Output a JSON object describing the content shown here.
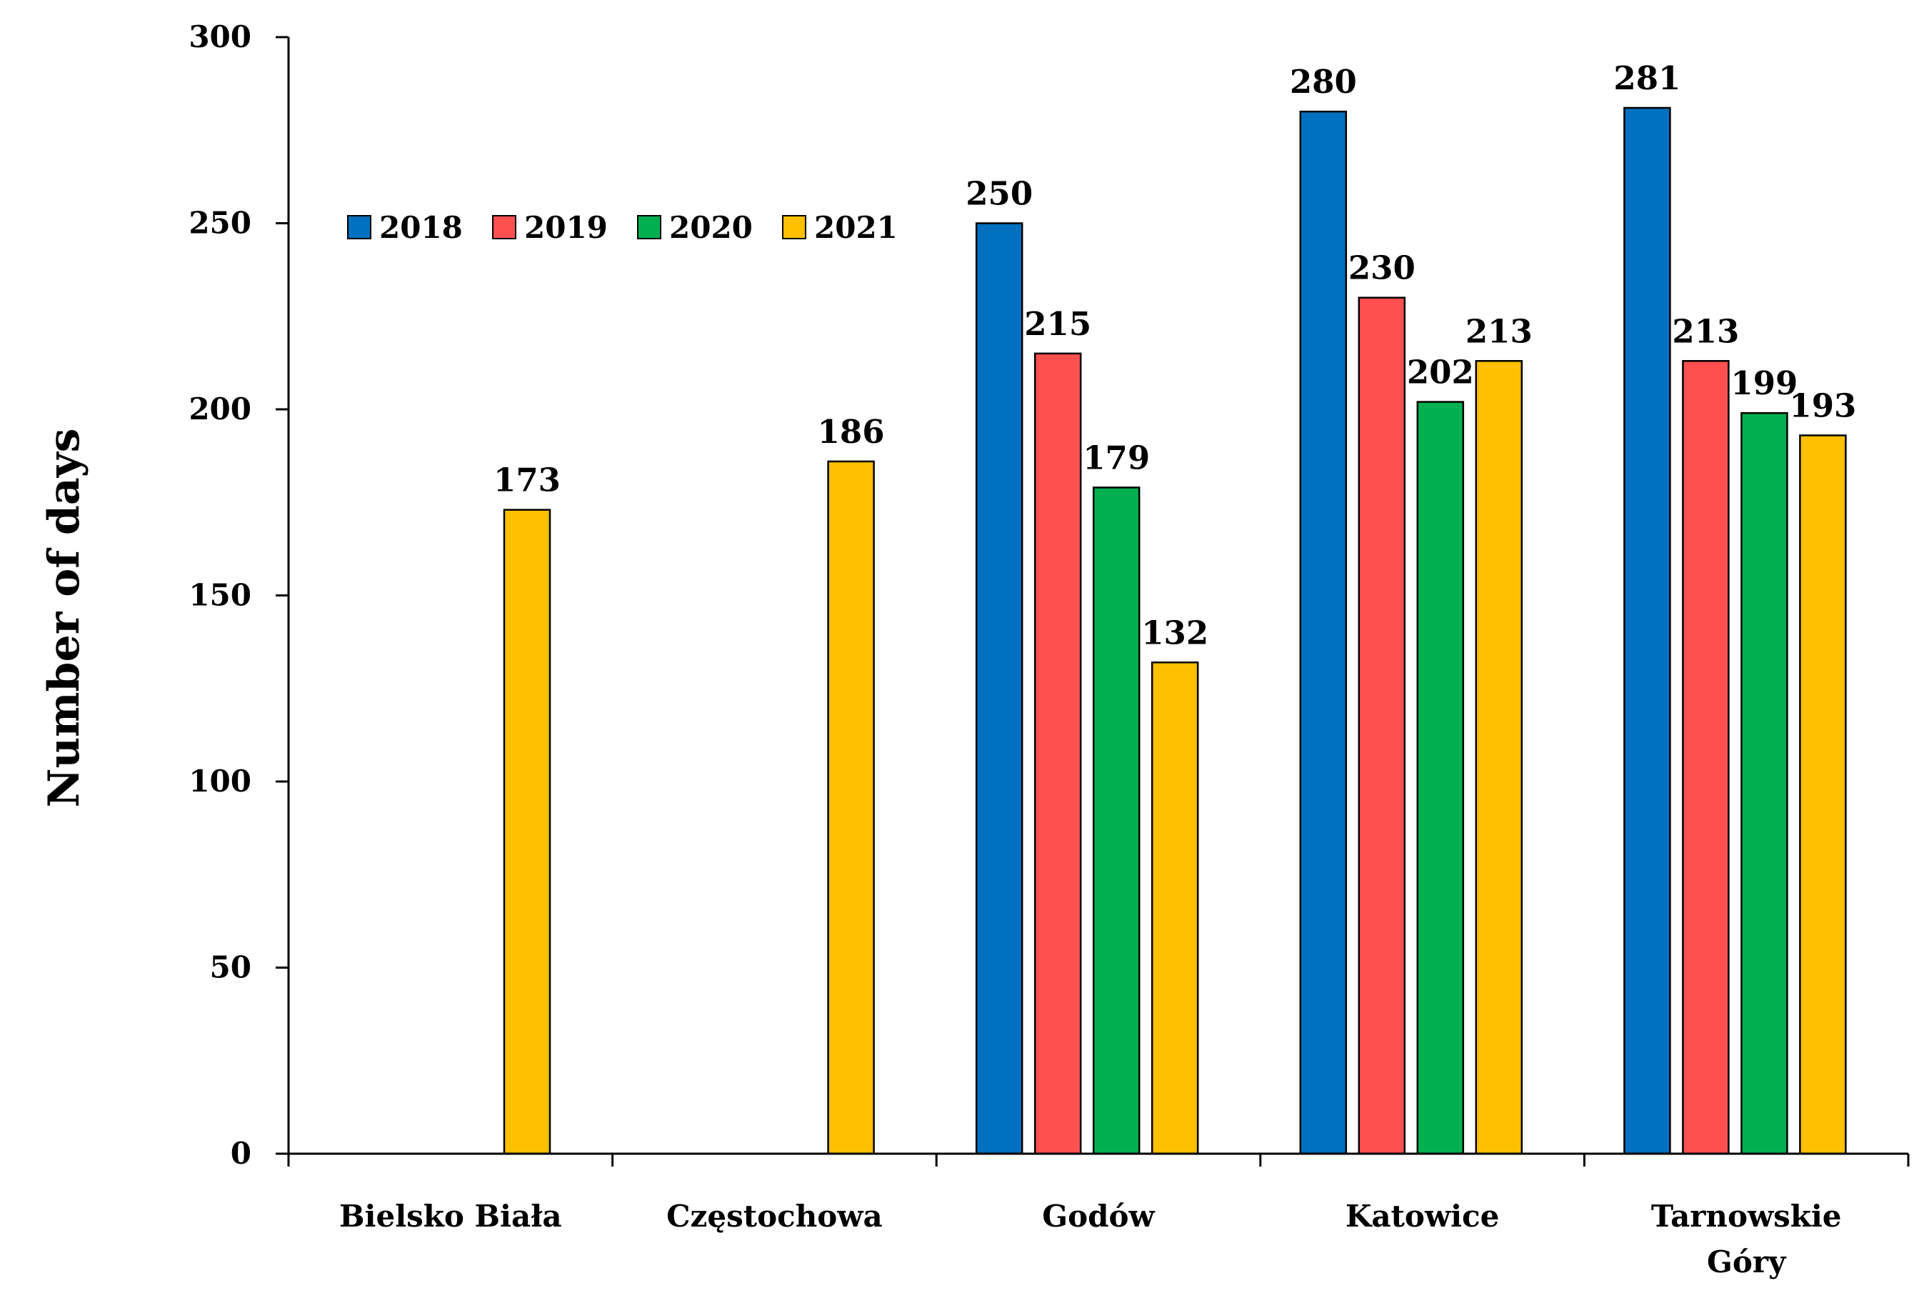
{
  "chart_data": {
    "type": "bar",
    "title": "",
    "xlabel": "",
    "ylabel": "Number of days",
    "ylim": [
      0,
      300
    ],
    "yticks": [
      0,
      50,
      100,
      150,
      200,
      250,
      300
    ],
    "categories": [
      [
        "Bielsko Biała"
      ],
      [
        "Częstochowa"
      ],
      [
        "Godów"
      ],
      [
        "Katowice"
      ],
      [
        "Tarnowskie",
        "Góry"
      ]
    ],
    "series": [
      {
        "name": "2018",
        "color": "#0070C0",
        "values": [
          null,
          null,
          250,
          280,
          281
        ]
      },
      {
        "name": "2019",
        "color": "#FF5050",
        "values": [
          null,
          null,
          215,
          230,
          213
        ]
      },
      {
        "name": "2020",
        "color": "#00B050",
        "values": [
          null,
          null,
          179,
          202,
          199
        ]
      },
      {
        "name": "2021",
        "color": "#FFC000",
        "values": [
          173,
          186,
          132,
          213,
          193
        ]
      }
    ],
    "legend": "top-left, horizontal",
    "grid": false
  }
}
